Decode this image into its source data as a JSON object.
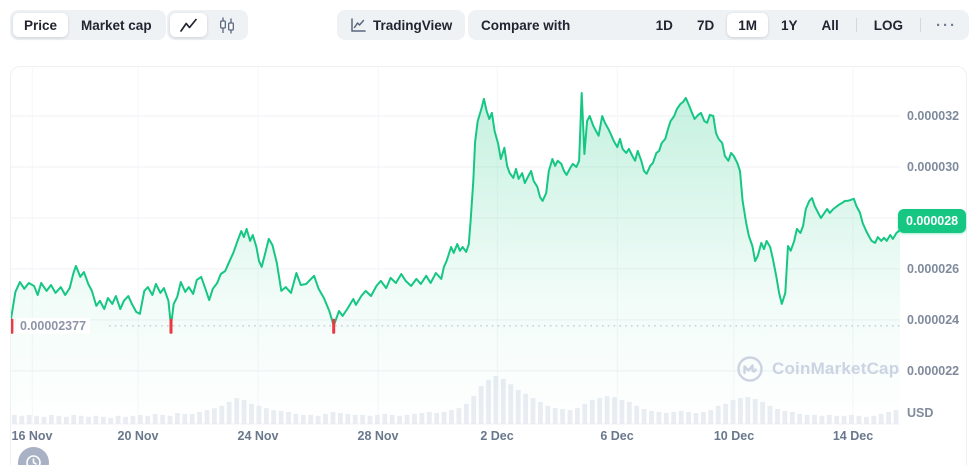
{
  "toolbar": {
    "metric_toggle": {
      "options": [
        "Price",
        "Market cap"
      ],
      "selected": "Price"
    },
    "chart_type_toggle": {
      "options": [
        "line",
        "candlestick"
      ],
      "selected": "line"
    },
    "tradingview_label": "TradingView",
    "compare_label": "Compare with",
    "range_options": [
      "1D",
      "7D",
      "1M",
      "1Y",
      "All"
    ],
    "range_selected": "1M",
    "log_label": "LOG",
    "more_label": "···"
  },
  "watermark": {
    "text": "CoinMarketCap"
  },
  "colors": {
    "green": "#16c784",
    "red": "#ea3943",
    "grid": "#f0f2f6",
    "grid_vertical": "#f4f6f9",
    "volume": "#e9edf3",
    "dotted": "#c3cad6",
    "fill_top": "rgba(22,199,132,0.25)",
    "fill_mid": "rgba(22,199,132,0.06)",
    "fill_bottom": "rgba(22,199,132,0)"
  },
  "chart_data": {
    "type": "area",
    "title": "Price chart, 1M range, Nov 16 - Dec 15",
    "unit_label": "USD",
    "price_scale": "values are USD x 1e-6",
    "grid": "horizontal",
    "legend": "none",
    "ylim_e6": [
      19.88,
      33.92
    ],
    "y_ticks": [
      {
        "label": "0.000032",
        "value_e6": 32,
        "replaced_by_badge": false
      },
      {
        "label": "0.000030",
        "value_e6": 30,
        "replaced_by_badge": false
      },
      {
        "label": "0.000028",
        "value_e6": 28,
        "replaced_by_badge": true
      },
      {
        "label": "0.000026",
        "value_e6": 26,
        "replaced_by_badge": false
      },
      {
        "label": "0.000024",
        "value_e6": 24,
        "replaced_by_badge": false
      },
      {
        "label": "0.000022",
        "value_e6": 22,
        "replaced_by_badge": false
      }
    ],
    "x_ticks": [
      {
        "label": "16 Nov",
        "t": 0.024
      },
      {
        "label": "20 Nov",
        "t": 0.143
      },
      {
        "label": "24 Nov",
        "t": 0.278
      },
      {
        "label": "28 Nov",
        "t": 0.413
      },
      {
        "label": "2 Dec",
        "t": 0.547
      },
      {
        "label": "6 Dec",
        "t": 0.682
      },
      {
        "label": "10 Dec",
        "t": 0.813
      },
      {
        "label": "14 Dec",
        "t": 0.947
      }
    ],
    "current_price": {
      "label": "0.000028",
      "value_e6": 27.9
    },
    "period_low": {
      "label": "0.00002377",
      "value_e6": 23.77
    },
    "low_markers_t": [
      0.001,
      0.18,
      0.363
    ],
    "series": [
      {
        "name": "price",
        "color": "#16c784",
        "points_t_price_e6": [
          [
            0.0,
            24.04
          ],
          [
            0.005,
            25.1
          ],
          [
            0.01,
            25.49
          ],
          [
            0.015,
            25.22
          ],
          [
            0.02,
            25.45
          ],
          [
            0.026,
            25.33
          ],
          [
            0.03,
            24.98
          ],
          [
            0.034,
            25.45
          ],
          [
            0.04,
            25.14
          ],
          [
            0.045,
            25.37
          ],
          [
            0.05,
            25.06
          ],
          [
            0.056,
            25.29
          ],
          [
            0.061,
            24.98
          ],
          [
            0.066,
            25.25
          ],
          [
            0.07,
            25.8
          ],
          [
            0.073,
            26.12
          ],
          [
            0.078,
            25.69
          ],
          [
            0.082,
            25.88
          ],
          [
            0.087,
            25.41
          ],
          [
            0.091,
            25.14
          ],
          [
            0.096,
            24.55
          ],
          [
            0.1,
            24.75
          ],
          [
            0.105,
            24.43
          ],
          [
            0.109,
            24.86
          ],
          [
            0.114,
            24.63
          ],
          [
            0.118,
            24.94
          ],
          [
            0.123,
            24.43
          ],
          [
            0.127,
            24.75
          ],
          [
            0.132,
            24.94
          ],
          [
            0.136,
            24.63
          ],
          [
            0.141,
            24.31
          ],
          [
            0.145,
            24.24
          ],
          [
            0.15,
            25.14
          ],
          [
            0.154,
            25.29
          ],
          [
            0.159,
            24.98
          ],
          [
            0.163,
            25.41
          ],
          [
            0.168,
            25.06
          ],
          [
            0.172,
            25.25
          ],
          [
            0.177,
            24.75
          ],
          [
            0.18,
            23.77
          ],
          [
            0.183,
            24.63
          ],
          [
            0.187,
            24.9
          ],
          [
            0.191,
            25.49
          ],
          [
            0.196,
            25.1
          ],
          [
            0.2,
            25.29
          ],
          [
            0.205,
            25.02
          ],
          [
            0.209,
            25.57
          ],
          [
            0.214,
            25.69
          ],
          [
            0.218,
            25.29
          ],
          [
            0.223,
            24.78
          ],
          [
            0.227,
            25.22
          ],
          [
            0.232,
            25.45
          ],
          [
            0.236,
            25.8
          ],
          [
            0.241,
            25.92
          ],
          [
            0.245,
            26.24
          ],
          [
            0.25,
            26.63
          ],
          [
            0.254,
            27.02
          ],
          [
            0.259,
            27.49
          ],
          [
            0.262,
            27.25
          ],
          [
            0.265,
            27.57
          ],
          [
            0.269,
            27.1
          ],
          [
            0.272,
            27.33
          ],
          [
            0.276,
            26.86
          ],
          [
            0.279,
            26.31
          ],
          [
            0.282,
            26.08
          ],
          [
            0.286,
            26.63
          ],
          [
            0.29,
            27.18
          ],
          [
            0.294,
            26.94
          ],
          [
            0.299,
            26.24
          ],
          [
            0.304,
            25.14
          ],
          [
            0.309,
            25.29
          ],
          [
            0.315,
            25.06
          ],
          [
            0.321,
            25.84
          ],
          [
            0.326,
            25.37
          ],
          [
            0.332,
            25.41
          ],
          [
            0.341,
            25.73
          ],
          [
            0.346,
            25.22
          ],
          [
            0.352,
            24.86
          ],
          [
            0.358,
            24.35
          ],
          [
            0.363,
            23.77
          ],
          [
            0.369,
            24.35
          ],
          [
            0.373,
            24.16
          ],
          [
            0.379,
            24.47
          ],
          [
            0.385,
            24.82
          ],
          [
            0.388,
            24.59
          ],
          [
            0.394,
            24.94
          ],
          [
            0.399,
            25.14
          ],
          [
            0.405,
            24.94
          ],
          [
            0.411,
            25.33
          ],
          [
            0.416,
            25.53
          ],
          [
            0.422,
            25.25
          ],
          [
            0.427,
            25.65
          ],
          [
            0.433,
            25.45
          ],
          [
            0.439,
            25.8
          ],
          [
            0.444,
            25.53
          ],
          [
            0.45,
            25.33
          ],
          [
            0.456,
            25.61
          ],
          [
            0.461,
            25.41
          ],
          [
            0.467,
            25.73
          ],
          [
            0.472,
            25.45
          ],
          [
            0.478,
            25.84
          ],
          [
            0.484,
            25.61
          ],
          [
            0.487,
            26.08
          ],
          [
            0.49,
            26.31
          ],
          [
            0.495,
            26.86
          ],
          [
            0.498,
            26.63
          ],
          [
            0.502,
            26.98
          ],
          [
            0.505,
            26.71
          ],
          [
            0.508,
            26.86
          ],
          [
            0.512,
            26.67
          ],
          [
            0.515,
            26.98
          ],
          [
            0.517,
            27.88
          ],
          [
            0.52,
            29.45
          ],
          [
            0.522,
            30.98
          ],
          [
            0.525,
            31.8
          ],
          [
            0.529,
            32.27
          ],
          [
            0.532,
            32.67
          ],
          [
            0.535,
            32.2
          ],
          [
            0.538,
            31.88
          ],
          [
            0.541,
            32.12
          ],
          [
            0.544,
            31.41
          ],
          [
            0.548,
            30.9
          ],
          [
            0.551,
            30.31
          ],
          [
            0.555,
            30.75
          ],
          [
            0.558,
            30.04
          ],
          [
            0.561,
            29.76
          ],
          [
            0.565,
            29.57
          ],
          [
            0.568,
            29.92
          ],
          [
            0.571,
            29.53
          ],
          [
            0.575,
            29.76
          ],
          [
            0.578,
            29.37
          ],
          [
            0.582,
            29.65
          ],
          [
            0.585,
            29.84
          ],
          [
            0.588,
            29.45
          ],
          [
            0.592,
            29.22
          ],
          [
            0.595,
            28.82
          ],
          [
            0.598,
            28.67
          ],
          [
            0.602,
            28.98
          ],
          [
            0.605,
            29.84
          ],
          [
            0.609,
            30.31
          ],
          [
            0.612,
            30.04
          ],
          [
            0.615,
            30.24
          ],
          [
            0.619,
            30.12
          ],
          [
            0.622,
            29.84
          ],
          [
            0.625,
            29.69
          ],
          [
            0.629,
            29.96
          ],
          [
            0.632,
            30.12
          ],
          [
            0.636,
            30.0
          ],
          [
            0.639,
            30.24
          ],
          [
            0.642,
            32.9
          ],
          [
            0.645,
            30.51
          ],
          [
            0.648,
            31.8
          ],
          [
            0.651,
            32.0
          ],
          [
            0.655,
            31.61
          ],
          [
            0.658,
            31.41
          ],
          [
            0.661,
            31.22
          ],
          [
            0.665,
            32.0
          ],
          [
            0.668,
            31.73
          ],
          [
            0.672,
            31.49
          ],
          [
            0.675,
            31.26
          ],
          [
            0.678,
            31.02
          ],
          [
            0.682,
            30.78
          ],
          [
            0.685,
            31.1
          ],
          [
            0.688,
            30.71
          ],
          [
            0.692,
            30.55
          ],
          [
            0.695,
            30.71
          ],
          [
            0.699,
            30.43
          ],
          [
            0.702,
            30.24
          ],
          [
            0.705,
            30.63
          ],
          [
            0.709,
            30.24
          ],
          [
            0.712,
            29.84
          ],
          [
            0.715,
            29.73
          ],
          [
            0.719,
            30.04
          ],
          [
            0.722,
            30.16
          ],
          [
            0.726,
            30.55
          ],
          [
            0.729,
            30.63
          ],
          [
            0.732,
            30.94
          ],
          [
            0.736,
            31.1
          ],
          [
            0.739,
            31.49
          ],
          [
            0.742,
            31.8
          ],
          [
            0.746,
            32.0
          ],
          [
            0.749,
            32.27
          ],
          [
            0.753,
            32.47
          ],
          [
            0.756,
            32.55
          ],
          [
            0.759,
            32.71
          ],
          [
            0.763,
            32.39
          ],
          [
            0.766,
            32.12
          ],
          [
            0.769,
            31.88
          ],
          [
            0.773,
            32.04
          ],
          [
            0.776,
            32.12
          ],
          [
            0.78,
            31.8
          ],
          [
            0.783,
            31.73
          ],
          [
            0.786,
            32.04
          ],
          [
            0.79,
            32.0
          ],
          [
            0.793,
            31.33
          ],
          [
            0.796,
            31.1
          ],
          [
            0.8,
            30.94
          ],
          [
            0.803,
            30.43
          ],
          [
            0.807,
            30.24
          ],
          [
            0.81,
            30.55
          ],
          [
            0.813,
            30.43
          ],
          [
            0.817,
            30.16
          ],
          [
            0.82,
            29.84
          ],
          [
            0.823,
            28.67
          ],
          [
            0.827,
            27.8
          ],
          [
            0.83,
            27.29
          ],
          [
            0.834,
            26.9
          ],
          [
            0.837,
            26.31
          ],
          [
            0.84,
            26.51
          ],
          [
            0.844,
            27.02
          ],
          [
            0.847,
            26.78
          ],
          [
            0.85,
            27.1
          ],
          [
            0.854,
            26.86
          ],
          [
            0.857,
            26.39
          ],
          [
            0.861,
            25.69
          ],
          [
            0.864,
            25.06
          ],
          [
            0.867,
            24.63
          ],
          [
            0.871,
            25.06
          ],
          [
            0.874,
            26.9
          ],
          [
            0.877,
            26.71
          ],
          [
            0.881,
            27.1
          ],
          [
            0.884,
            27.57
          ],
          [
            0.888,
            27.41
          ],
          [
            0.891,
            27.69
          ],
          [
            0.894,
            28.35
          ],
          [
            0.898,
            28.67
          ],
          [
            0.901,
            28.78
          ],
          [
            0.904,
            28.47
          ],
          [
            0.908,
            28.2
          ],
          [
            0.911,
            28.0
          ],
          [
            0.915,
            28.2
          ],
          [
            0.918,
            28.35
          ],
          [
            0.921,
            28.2
          ],
          [
            0.925,
            28.35
          ],
          [
            0.928,
            28.43
          ],
          [
            0.931,
            28.51
          ],
          [
            0.935,
            28.59
          ],
          [
            0.938,
            28.67
          ],
          [
            0.941,
            28.67
          ],
          [
            0.945,
            28.71
          ],
          [
            0.948,
            28.75
          ],
          [
            0.951,
            28.47
          ],
          [
            0.955,
            28.2
          ],
          [
            0.958,
            27.8
          ],
          [
            0.962,
            27.49
          ],
          [
            0.965,
            27.29
          ],
          [
            0.968,
            27.1
          ],
          [
            0.972,
            27.02
          ],
          [
            0.975,
            27.25
          ],
          [
            0.979,
            27.1
          ],
          [
            0.982,
            27.22
          ],
          [
            0.985,
            27.1
          ],
          [
            0.989,
            27.33
          ],
          [
            0.992,
            27.18
          ],
          [
            0.996,
            27.41
          ],
          [
            1.0,
            27.53
          ]
        ]
      }
    ],
    "volume_rel": [
      0.19,
      0.17,
      0.19,
      0.17,
      0.15,
      0.19,
      0.17,
      0.15,
      0.19,
      0.17,
      0.15,
      0.17,
      0.15,
      0.13,
      0.17,
      0.15,
      0.17,
      0.19,
      0.17,
      0.21,
      0.19,
      0.17,
      0.23,
      0.21,
      0.21,
      0.25,
      0.29,
      0.33,
      0.38,
      0.46,
      0.54,
      0.5,
      0.42,
      0.38,
      0.33,
      0.29,
      0.27,
      0.25,
      0.21,
      0.19,
      0.19,
      0.17,
      0.21,
      0.25,
      0.23,
      0.21,
      0.19,
      0.19,
      0.17,
      0.19,
      0.21,
      0.19,
      0.17,
      0.19,
      0.21,
      0.23,
      0.25,
      0.23,
      0.25,
      0.29,
      0.33,
      0.42,
      0.58,
      0.79,
      0.92,
      1.0,
      0.94,
      0.83,
      0.71,
      0.63,
      0.54,
      0.46,
      0.38,
      0.33,
      0.31,
      0.29,
      0.33,
      0.42,
      0.5,
      0.54,
      0.58,
      0.56,
      0.5,
      0.46,
      0.38,
      0.31,
      0.27,
      0.25,
      0.23,
      0.25,
      0.27,
      0.25,
      0.23,
      0.25,
      0.29,
      0.38,
      0.42,
      0.5,
      0.54,
      0.56,
      0.52,
      0.46,
      0.38,
      0.31,
      0.27,
      0.25,
      0.21,
      0.19,
      0.19,
      0.17,
      0.19,
      0.17,
      0.17,
      0.19,
      0.17,
      0.15,
      0.17,
      0.21,
      0.25,
      0.29
    ]
  }
}
